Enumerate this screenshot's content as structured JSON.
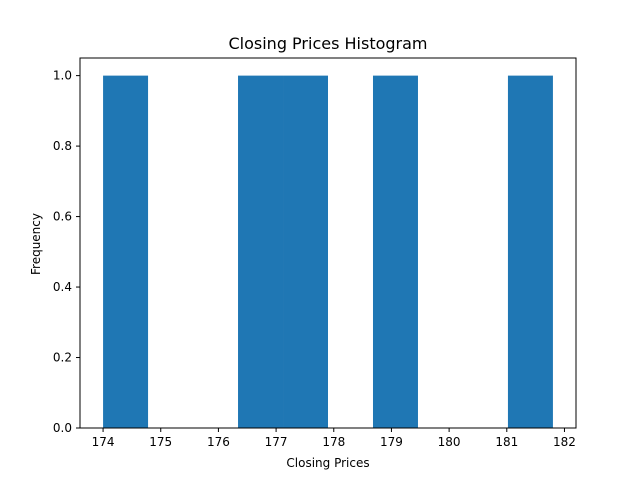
{
  "chart_data": {
    "type": "bar",
    "title": "Closing Prices Histogram",
    "xlabel": "Closing Prices",
    "ylabel": "Frequency",
    "xlim": [
      173.6,
      182.2
    ],
    "ylim": [
      0,
      1.05
    ],
    "xticks": [
      174,
      175,
      176,
      177,
      178,
      179,
      180,
      181,
      182
    ],
    "yticks": [
      0.0,
      0.2,
      0.4,
      0.6,
      0.8,
      1.0
    ],
    "ytick_labels": [
      "0.0",
      "0.2",
      "0.4",
      "0.6",
      "0.8",
      "1.0"
    ],
    "bins": [
      {
        "x0": 174.0,
        "x1": 174.78,
        "value": 1
      },
      {
        "x0": 174.78,
        "x1": 175.56,
        "value": 0
      },
      {
        "x0": 175.56,
        "x1": 176.34,
        "value": 0
      },
      {
        "x0": 176.34,
        "x1": 177.12,
        "value": 1
      },
      {
        "x0": 177.12,
        "x1": 177.9,
        "value": 1
      },
      {
        "x0": 177.9,
        "x1": 178.68,
        "value": 0
      },
      {
        "x0": 178.68,
        "x1": 179.46,
        "value": 1
      },
      {
        "x0": 179.46,
        "x1": 180.24,
        "value": 0
      },
      {
        "x0": 180.24,
        "x1": 181.02,
        "value": 0
      },
      {
        "x0": 181.02,
        "x1": 181.8,
        "value": 1
      }
    ],
    "bar_color": "#1f77b4",
    "grid": false,
    "legend": "none"
  }
}
